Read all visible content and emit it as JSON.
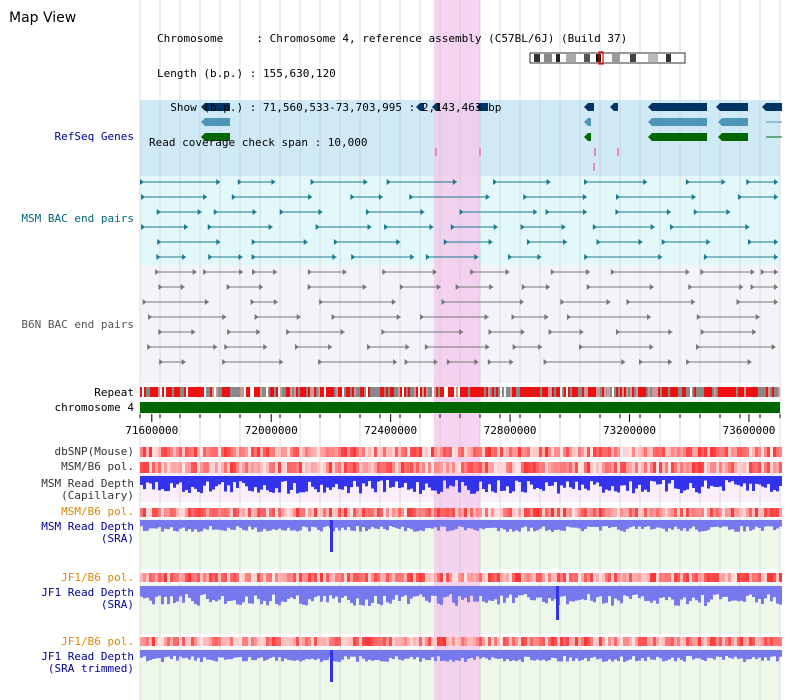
{
  "window": {
    "title": "Map View"
  },
  "info": {
    "chromosome_line": "Chromosome     : Chromosome 4, reference assembly (C57BL/6J) (Build 37)",
    "length_line": "Length (b.p.) : 155,630,120",
    "show_line": "  Show (b.p.) : 71,560,533-73,703,995 : 2,143,463 bp",
    "span_line": "Read coverage check span : 10,000"
  },
  "tracks": {
    "refseq": "RefSeq Genes",
    "msm_bac": "MSM BAC end pairs",
    "b6n_bac": "B6N BAC end pairs",
    "repeat": "Repeat",
    "chromosome": "chromosome 4",
    "dbsnp": "dbSNP(Mouse)",
    "msm_pol1": "MSM/B6 pol.",
    "msm_depth_cap_1": "MSM Read Depth",
    "msm_depth_cap_2": "(Capillary)",
    "msm_pol2": "MSM/B6 pol.",
    "msm_depth_sra_1": "MSM Read Depth",
    "msm_depth_sra_2": "(SRA)",
    "jf1_pol1": "JF1/B6 pol.",
    "jf1_depth_sra_1": "JF1 Read Depth",
    "jf1_depth_sra_2": "(SRA)",
    "jf1_pol2": "JF1/B6 pol.",
    "jf1_depth_trim_1": "JF1 Read Depth",
    "jf1_depth_trim_2": "(SRA trimmed)"
  },
  "axis": {
    "ticks": [
      "71600000",
      "72000000",
      "72400000",
      "72800000",
      "73200000",
      "73600000"
    ],
    "range_bp": [
      71560533,
      73703995
    ]
  },
  "highlight_bp": [
    72545000,
    72700000
  ],
  "colors": {
    "refseq_dark": "#003366",
    "refseq_mid": "#4c96b8",
    "refseq_green": "#006600",
    "msm_bac_line": "#1a7a8e",
    "b6n_bac_line": "#777777",
    "highlight": "#f4c8ec",
    "depth_blue": "#3333ee",
    "depth_light": "#7777ee",
    "chromosome_bar": "#006600",
    "label_navy": "#000099",
    "label_teal": "#006677",
    "label_orange": "#dd8800",
    "label_gray": "#333333"
  }
}
